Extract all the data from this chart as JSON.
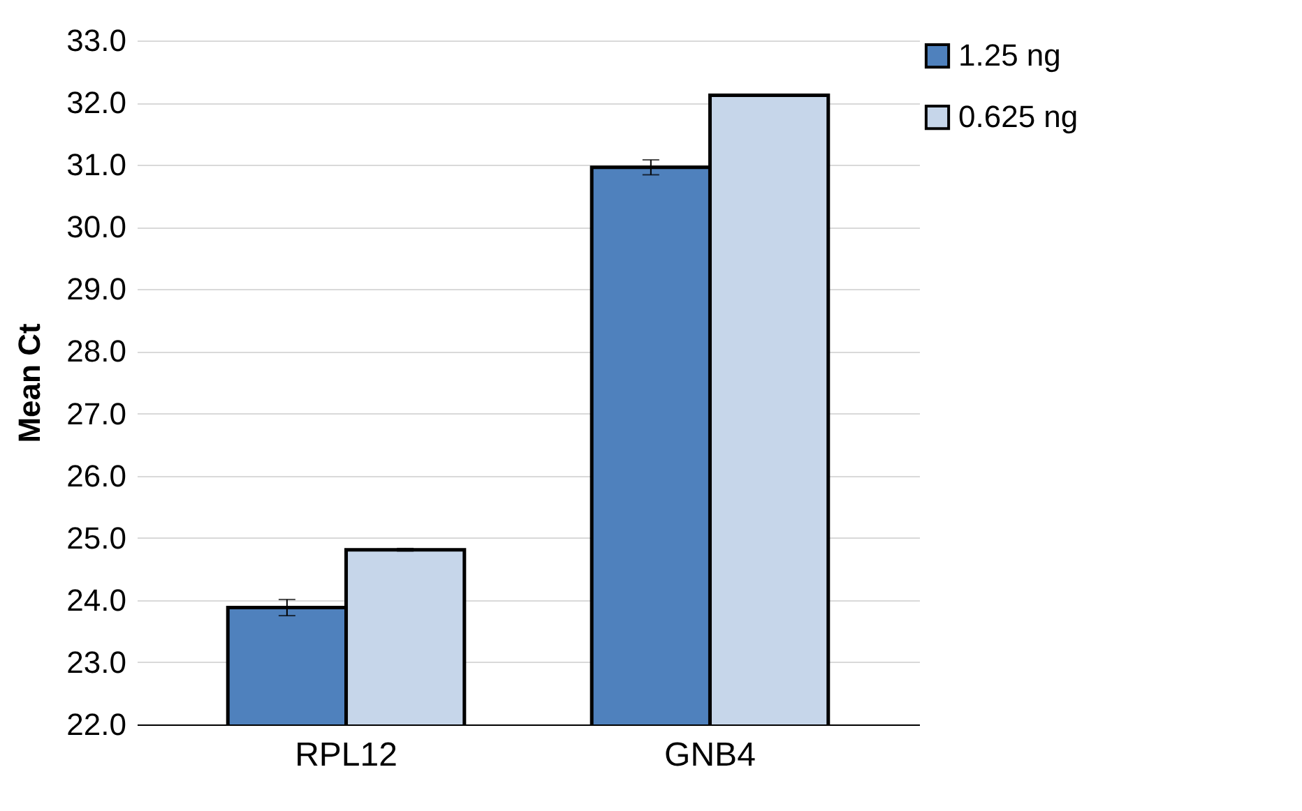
{
  "chart_data": {
    "type": "bar",
    "ylabel": "Mean Ct",
    "categories": [
      "RPL12",
      "GNB4"
    ],
    "series": [
      {
        "name": "1.25 ng",
        "color": "#4f81bd",
        "values": [
          23.88,
          30.96
        ],
        "errors": [
          0.13,
          0.12
        ]
      },
      {
        "name": "0.625 ng",
        "color": "#c6d6ea",
        "values": [
          24.81,
          32.12
        ],
        "errors": [
          0.02,
          null
        ]
      }
    ],
    "ylim": [
      22,
      33
    ],
    "yticks": [
      {
        "value": 22,
        "label": "22.0"
      },
      {
        "value": 23,
        "label": "23.0"
      },
      {
        "value": 24,
        "label": "24.0"
      },
      {
        "value": 25,
        "label": "25.0"
      },
      {
        "value": 26,
        "label": "26.0"
      },
      {
        "value": 27,
        "label": "27.0"
      },
      {
        "value": 28,
        "label": "28.0"
      },
      {
        "value": 29,
        "label": "29.0"
      },
      {
        "value": 30,
        "label": "30.0"
      },
      {
        "value": 31,
        "label": "31.0"
      },
      {
        "value": 32,
        "label": "32.0"
      },
      {
        "value": 33,
        "label": "33.0"
      }
    ],
    "grid": "y",
    "legend": "right"
  }
}
